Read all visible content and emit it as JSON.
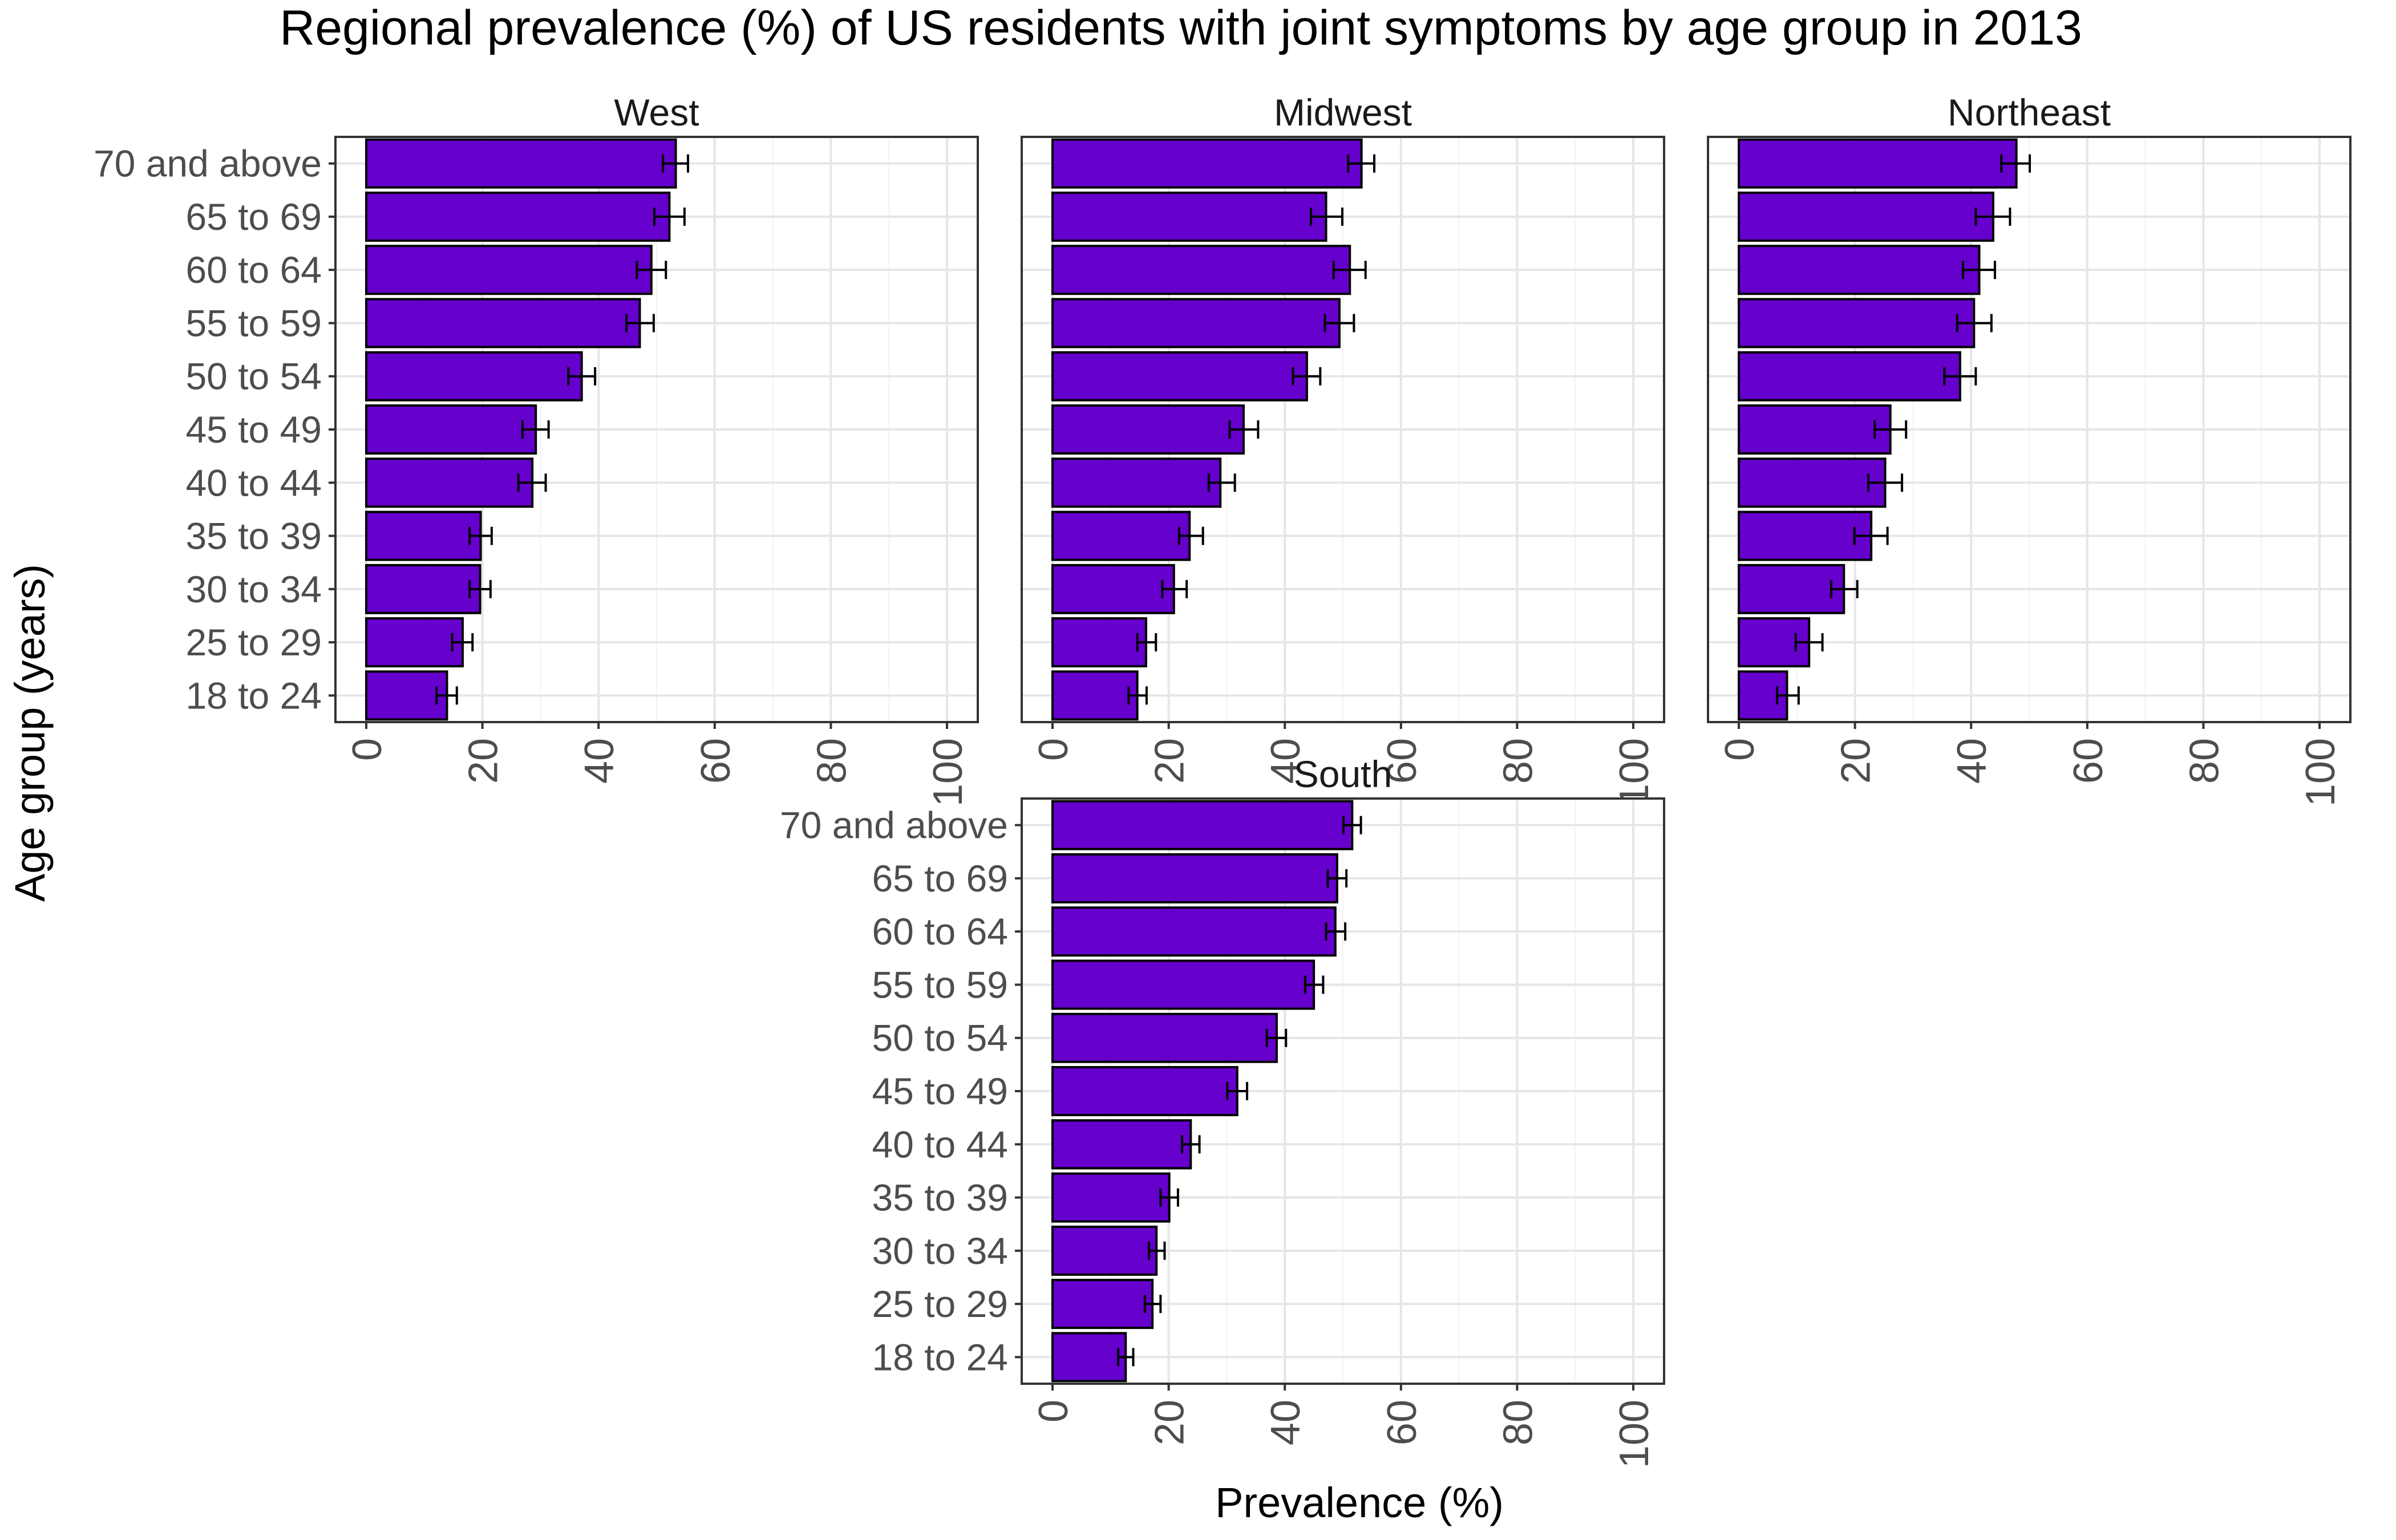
{
  "chart_data": {
    "type": "bar",
    "orientation": "horizontal",
    "title": "Regional prevalence (%) of US residents with joint symptoms by age group in 2013",
    "xlabel": "Prevalence (%)",
    "ylabel": "Age group (years)",
    "xlim": [
      0,
      100
    ],
    "x_ticks": [
      0,
      20,
      40,
      60,
      80,
      100
    ],
    "x_tick_labels": [
      "0",
      "20",
      "40",
      "60",
      "80",
      "100"
    ],
    "categories": [
      "70 and above",
      "65 to 69",
      "60 to 64",
      "55 to 59",
      "50 to 54",
      "45 to 49",
      "40 to 44",
      "35 to 39",
      "30 to 34",
      "25 to 29",
      "18 to 24"
    ],
    "bar_color": "#6600CC",
    "grid": true,
    "panels": [
      {
        "name": "West",
        "values": [
          53.3,
          52.2,
          49.1,
          47.1,
          37.1,
          29.2,
          28.6,
          19.7,
          19.6,
          16.6,
          13.9
        ],
        "error_low": [
          51.1,
          49.6,
          46.6,
          44.8,
          34.8,
          26.9,
          26.2,
          17.8,
          17.8,
          14.8,
          12.1
        ],
        "error_high": [
          55.4,
          54.8,
          51.6,
          49.5,
          39.4,
          31.4,
          30.9,
          21.6,
          21.4,
          18.3,
          15.6
        ]
      },
      {
        "name": "Midwest",
        "values": [
          53.2,
          47.1,
          51.2,
          49.4,
          43.8,
          32.9,
          28.9,
          23.6,
          20.9,
          16.1,
          14.6
        ],
        "error_low": [
          50.9,
          44.5,
          48.4,
          46.9,
          41.4,
          30.5,
          26.9,
          21.8,
          18.9,
          14.6,
          13.1
        ],
        "error_high": [
          55.4,
          49.9,
          53.9,
          51.9,
          46.1,
          35.4,
          31.4,
          25.9,
          23.1,
          17.8,
          16.2
        ]
      },
      {
        "name": "Northeast",
        "values": [
          47.8,
          43.8,
          41.4,
          40.5,
          38.1,
          26.1,
          25.2,
          22.8,
          18.1,
          12.1,
          8.3
        ],
        "error_low": [
          45.2,
          40.8,
          38.6,
          37.6,
          35.4,
          23.4,
          22.3,
          19.9,
          15.9,
          9.8,
          6.6
        ],
        "error_high": [
          50.1,
          46.7,
          44.1,
          43.5,
          40.8,
          28.8,
          28.1,
          25.6,
          20.4,
          14.4,
          10.3
        ]
      },
      {
        "name": "South",
        "values": [
          51.6,
          49.0,
          48.7,
          45.0,
          38.6,
          31.8,
          23.8,
          20.1,
          17.9,
          17.2,
          12.6
        ],
        "error_low": [
          50.1,
          47.4,
          47.1,
          43.5,
          36.9,
          30.1,
          22.3,
          18.6,
          16.6,
          15.9,
          11.3
        ],
        "error_high": [
          53.1,
          50.6,
          50.4,
          46.6,
          40.2,
          33.5,
          25.3,
          21.6,
          19.3,
          18.6,
          13.9
        ]
      }
    ]
  }
}
